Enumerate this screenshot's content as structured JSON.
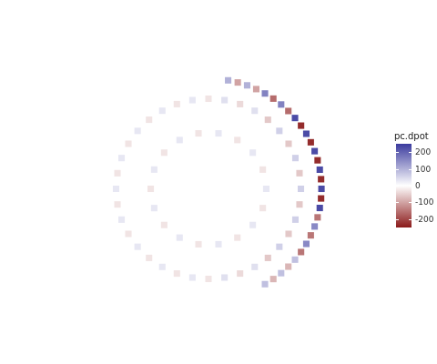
{
  "chart_data": {
    "type": "heatmap",
    "tick_labels": false,
    "grid": false,
    "xlim": [
      -1,
      1
    ],
    "ylim": [
      -1,
      1
    ],
    "cells": [
      [
        0.44,
        -0.762,
        80
      ],
      [
        0.505,
        -0.721,
        -80
      ],
      [
        0.566,
        -0.674,
        80
      ],
      [
        0.622,
        -0.622,
        -80
      ],
      [
        0.674,
        -0.566,
        80
      ],
      [
        0.721,
        -0.505,
        -150
      ],
      [
        0.762,
        -0.44,
        150
      ],
      [
        0.797,
        -0.372,
        -150
      ],
      [
        0.827,
        -0.301,
        150
      ],
      [
        0.85,
        -0.228,
        -150
      ],
      [
        0.867,
        -0.153,
        230
      ],
      [
        0.877,
        -0.077,
        -230
      ],
      [
        0.88,
        0,
        230
      ],
      [
        0.877,
        0.077,
        -230
      ],
      [
        0.867,
        0.153,
        230
      ],
      [
        0.85,
        0.228,
        -230
      ],
      [
        0.827,
        0.301,
        230
      ],
      [
        0.797,
        0.372,
        -230
      ],
      [
        0.762,
        0.44,
        230
      ],
      [
        0.721,
        0.505,
        -230
      ],
      [
        0.674,
        0.566,
        230
      ],
      [
        0.622,
        0.622,
        -160
      ],
      [
        0.566,
        0.674,
        160
      ],
      [
        0.505,
        0.721,
        -160
      ],
      [
        0.44,
        0.762,
        160
      ],
      [
        0.372,
        0.797,
        -100
      ],
      [
        0.301,
        0.827,
        100
      ],
      [
        0.228,
        0.85,
        -100
      ],
      [
        0.153,
        0.867,
        100
      ],
      [
        0.72,
        0,
        60
      ],
      [
        0.709,
        0.125,
        -60
      ],
      [
        0.677,
        0.246,
        60
      ],
      [
        0.624,
        0.36,
        -60
      ],
      [
        0.552,
        0.463,
        60
      ],
      [
        0.463,
        0.552,
        -60
      ],
      [
        0.36,
        0.624,
        40
      ],
      [
        0.246,
        0.677,
        -40
      ],
      [
        0.125,
        0.709,
        40
      ],
      [
        0,
        0.72,
        -30
      ],
      [
        -0.125,
        0.709,
        30
      ],
      [
        -0.246,
        0.677,
        -30
      ],
      [
        -0.36,
        0.624,
        30
      ],
      [
        -0.463,
        0.552,
        -30
      ],
      [
        -0.552,
        0.463,
        30
      ],
      [
        -0.624,
        0.36,
        -30
      ],
      [
        -0.677,
        0.246,
        30
      ],
      [
        -0.709,
        0.125,
        -30
      ],
      [
        -0.72,
        0,
        30
      ],
      [
        -0.709,
        -0.125,
        -30
      ],
      [
        -0.677,
        -0.246,
        30
      ],
      [
        -0.624,
        -0.36,
        -30
      ],
      [
        -0.552,
        -0.463,
        30
      ],
      [
        -0.463,
        -0.552,
        -30
      ],
      [
        -0.36,
        -0.624,
        30
      ],
      [
        -0.246,
        -0.677,
        -30
      ],
      [
        -0.125,
        -0.709,
        30
      ],
      [
        0,
        -0.72,
        -30
      ],
      [
        0.125,
        -0.709,
        40
      ],
      [
        0.246,
        -0.677,
        -40
      ],
      [
        0.36,
        -0.624,
        40
      ],
      [
        0.463,
        -0.552,
        -60
      ],
      [
        0.552,
        -0.463,
        60
      ],
      [
        0.624,
        -0.36,
        -60
      ],
      [
        0.677,
        -0.246,
        60
      ],
      [
        0.709,
        -0.125,
        -60
      ],
      [
        0.45,
        0,
        30
      ],
      [
        0.423,
        0.154,
        -30
      ],
      [
        0.345,
        0.289,
        30
      ],
      [
        0.225,
        0.39,
        -30
      ],
      [
        0.078,
        0.443,
        30
      ],
      [
        -0.078,
        0.443,
        -30
      ],
      [
        -0.225,
        0.39,
        30
      ],
      [
        -0.345,
        0.289,
        -30
      ],
      [
        -0.423,
        0.154,
        30
      ],
      [
        -0.45,
        0,
        -30
      ],
      [
        -0.423,
        -0.154,
        30
      ],
      [
        -0.345,
        -0.289,
        -30
      ],
      [
        -0.225,
        -0.39,
        30
      ],
      [
        -0.078,
        -0.443,
        -30
      ],
      [
        0.078,
        -0.443,
        30
      ],
      [
        0.225,
        -0.39,
        -30
      ],
      [
        0.345,
        -0.289,
        30
      ],
      [
        0.423,
        -0.154,
        -30
      ]
    ],
    "colorbar": {
      "title": "pc.dpot",
      "range": [
        -250,
        250
      ],
      "ticks": [
        -200,
        -100,
        0,
        100,
        200
      ],
      "colors": [
        "#8b1a1a",
        "#ffffff",
        "#3b3b9e"
      ]
    }
  }
}
